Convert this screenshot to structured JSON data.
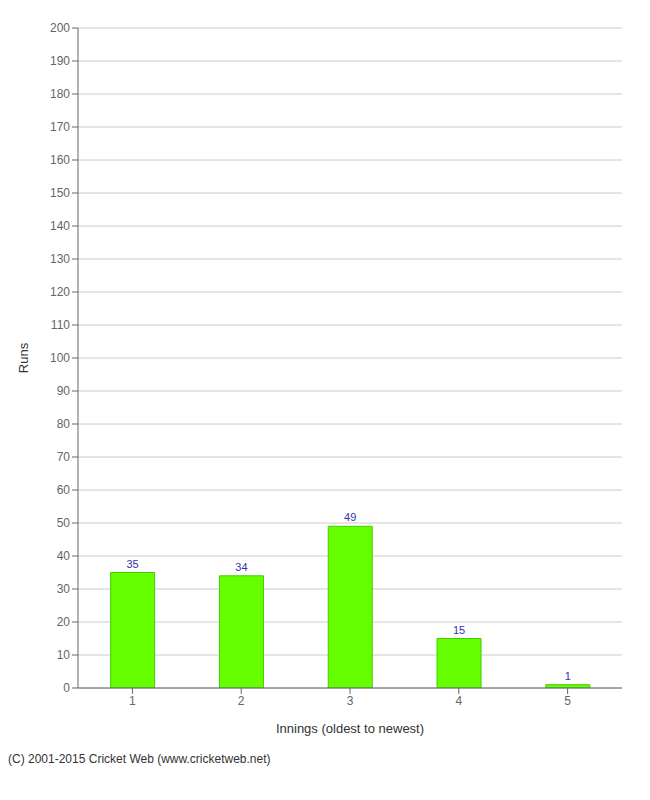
{
  "chart_data": {
    "type": "bar",
    "categories": [
      "1",
      "2",
      "3",
      "4",
      "5"
    ],
    "values": [
      35,
      34,
      49,
      15,
      1
    ],
    "color": "#66ff00",
    "xlabel": "Innings (oldest to newest)",
    "ylabel": "Runs",
    "ylim": [
      0,
      200
    ],
    "yticks": [
      0,
      10,
      20,
      30,
      40,
      50,
      60,
      70,
      80,
      90,
      100,
      110,
      120,
      130,
      140,
      150,
      160,
      170,
      180,
      190,
      200
    ],
    "grid": true,
    "data_labels": true,
    "annotations": [
      "(C) 2001-2015 Cricket Web (www.cricketweb.net)"
    ]
  }
}
